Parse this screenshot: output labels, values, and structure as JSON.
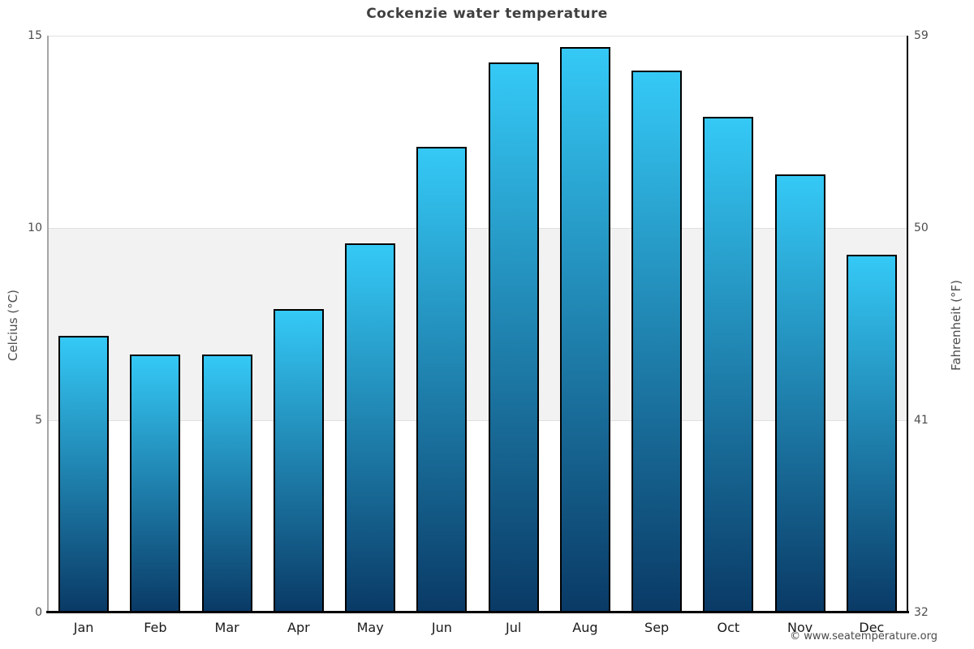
{
  "title": "Cockenzie water temperature",
  "footer": {
    "attribution": "© www.seatemperature.org"
  },
  "chart_data": {
    "type": "bar",
    "title": "Cockenzie water temperature",
    "categories": [
      "Jan",
      "Feb",
      "Mar",
      "Apr",
      "May",
      "Jun",
      "Jul",
      "Aug",
      "Sep",
      "Oct",
      "Nov",
      "Dec"
    ],
    "values": [
      7.2,
      6.7,
      6.7,
      7.9,
      9.6,
      12.1,
      14.3,
      14.7,
      14.1,
      12.9,
      11.4,
      9.3
    ],
    "ylabel_left": "Celcius (°C)",
    "ylabel_right": "Fahrenheit (°F)",
    "yticks_left": [
      0,
      5,
      10,
      15
    ],
    "yticks_right": [
      32,
      41,
      50,
      59
    ],
    "ylim": [
      0,
      15
    ],
    "grid": "horizontal gridlines at 5, 10, 15 with shaded band 5-10",
    "bands": [
      {
        "from": 5,
        "to": 10
      }
    ],
    "legend": "none",
    "colors": {
      "bar_gradient_top": "#35c9f6",
      "bar_gradient_bottom": "#0a3a66",
      "bar_border": "#000000",
      "band": "#f2f2f2",
      "gridline": "#e0e0e0",
      "axis_left_line": "#a6a6a6",
      "axis_right_line": "#000000",
      "axis_bottom_line": "#000000",
      "title_color": "#404040",
      "tick_label_color": "#4d4d4d",
      "month_label_color": "#1a1a1a",
      "footer_color": "#4a4a4a"
    }
  }
}
